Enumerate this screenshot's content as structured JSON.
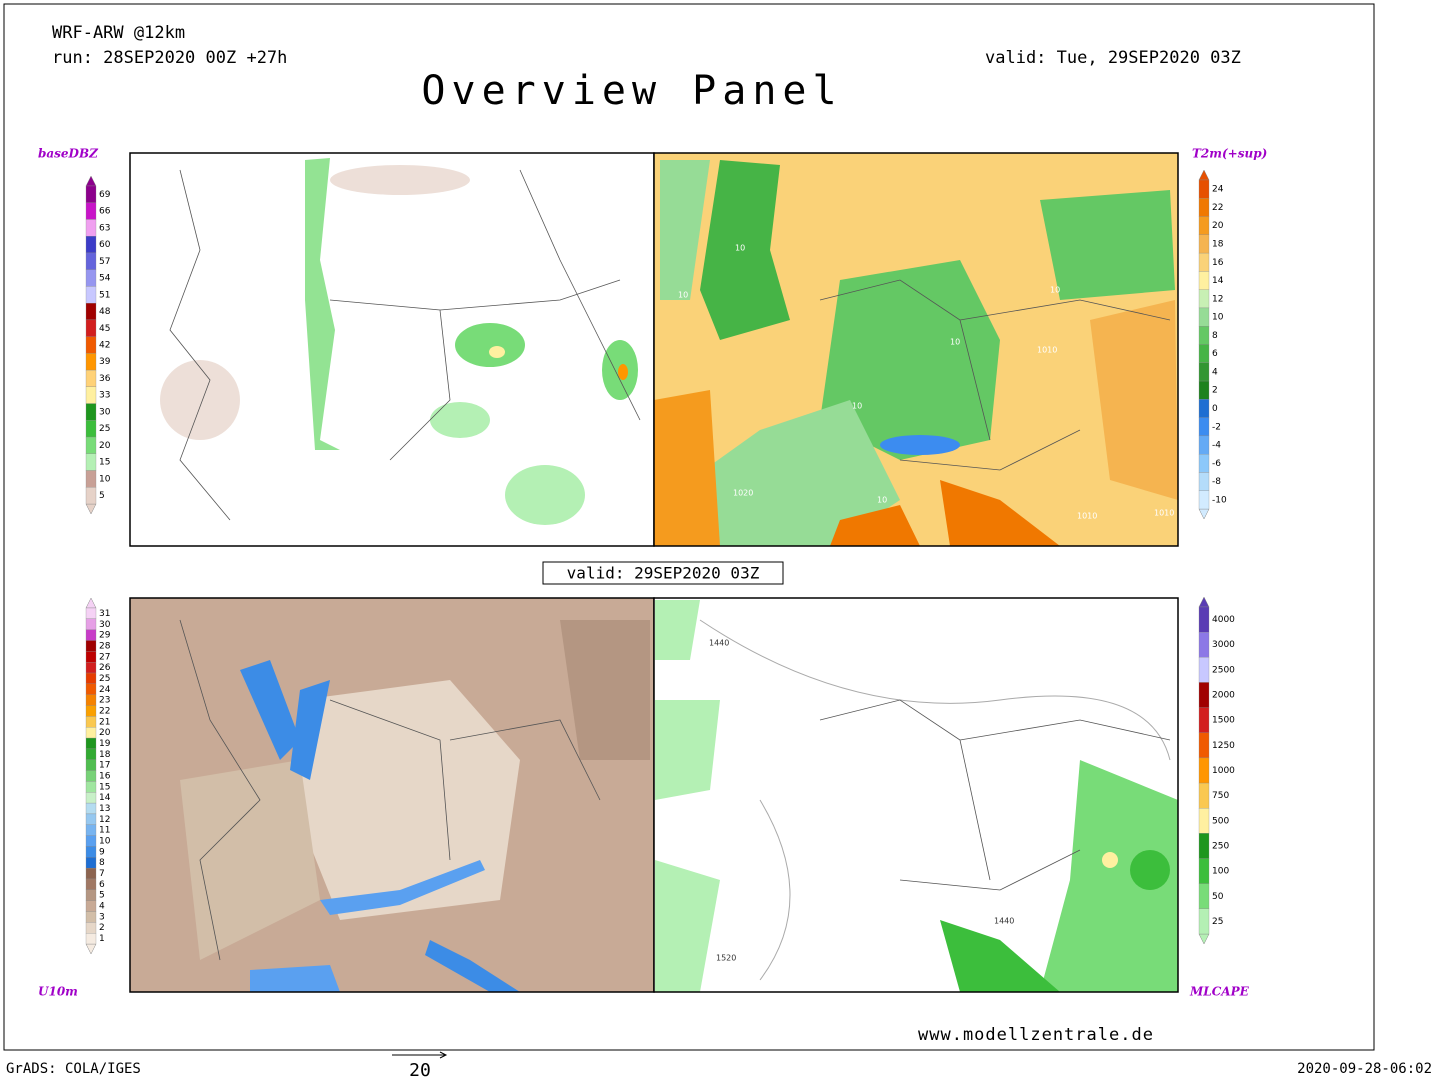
{
  "header": {
    "model": "WRF-ARW @12km",
    "run": "run: 28SEP2020 00Z +27h",
    "valid": "valid: Tue, 29SEP2020 03Z",
    "title": "Overview Panel"
  },
  "center_valid": "valid: 29SEP2020 03Z",
  "panels": [
    {
      "label": "baseDBZ",
      "colorbar": {
        "labels": [
          69,
          66,
          63,
          60,
          57,
          54,
          51,
          48,
          45,
          42,
          39,
          36,
          33,
          30,
          25,
          20,
          15,
          10,
          5
        ],
        "colors": [
          "#8c008c",
          "#c814c8",
          "#f0a0f0",
          "#3c3cc8",
          "#6464dc",
          "#9696f0",
          "#c8c8ff",
          "#a00000",
          "#d21e1e",
          "#f05a00",
          "#ff9600",
          "#ffd278",
          "#fff0a0",
          "#1e961e",
          "#3cbe3c",
          "#78dc78",
          "#b4f0b4",
          "#c8a096",
          "#e6d2c8"
        ]
      }
    },
    {
      "label": "T2m(+sup)",
      "colorbar": {
        "labels": [
          24,
          22,
          20,
          18,
          16,
          14,
          12,
          10,
          8,
          6,
          4,
          2,
          0,
          -2,
          -4,
          -6,
          -8,
          -10
        ],
        "colors": [
          "#e65000",
          "#f07800",
          "#f59b1e",
          "#f5b450",
          "#fad278",
          "#fff0a0",
          "#c8f0b4",
          "#96dc96",
          "#64c864",
          "#46b446",
          "#329632",
          "#1e821e",
          "#1e6ed2",
          "#3c8cf0",
          "#64aaf5",
          "#8cc8fa",
          "#b4dcfa",
          "#d2ebff"
        ]
      }
    },
    {
      "label": "U10m",
      "colorbar": {
        "labels": [
          31,
          30,
          29,
          28,
          27,
          26,
          25,
          24,
          23,
          22,
          21,
          20,
          19,
          18,
          17,
          16,
          15,
          14,
          13,
          12,
          11,
          10,
          9,
          8,
          7,
          6,
          5,
          4,
          3,
          2,
          1
        ],
        "colors": [
          "#f5d2f5",
          "#e6a0e6",
          "#c83cc8",
          "#a00000",
          "#be0000",
          "#d21e1e",
          "#e63c00",
          "#f05a00",
          "#f58200",
          "#faa000",
          "#fac850",
          "#fff0a0",
          "#1e961e",
          "#32aa32",
          "#50be50",
          "#78d278",
          "#a0e6a0",
          "#c8f0c8",
          "#b4dcf0",
          "#96c8f0",
          "#78b4f0",
          "#5aa0f0",
          "#3c8ce6",
          "#1e6ed2",
          "#8c6450",
          "#a07864",
          "#b49682",
          "#c8aa96",
          "#d2bea8",
          "#e6d7c8",
          "#f5ebe1"
        ]
      }
    },
    {
      "label": "MLCAPE",
      "colorbar": {
        "labels": [
          4000,
          3000,
          2500,
          2000,
          1500,
          1250,
          1000,
          750,
          500,
          250,
          100,
          50,
          25
        ],
        "colors": [
          "#5a3cb4",
          "#8c78e6",
          "#c8c8ff",
          "#a00000",
          "#d21e1e",
          "#f05a00",
          "#ff9600",
          "#fac850",
          "#fff0a0",
          "#1e961e",
          "#3cbe3c",
          "#78dc78",
          "#b4f0b4"
        ]
      }
    }
  ],
  "map_labels": {
    "t2m": [
      "10",
      "10",
      "10",
      "10",
      "1010",
      "10",
      "1020",
      "10",
      "1010",
      "1010"
    ],
    "cape": [
      "1440",
      "1440",
      "1520"
    ]
  },
  "footer": {
    "url": "www.modellzentrale.de",
    "software": "GrADS: COLA/IGES",
    "arrow_scale": "20",
    "timestamp": "2020-09-28-06:02"
  }
}
